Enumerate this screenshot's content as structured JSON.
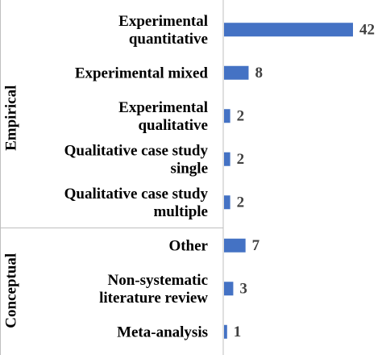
{
  "chart_data": {
    "type": "bar",
    "orientation": "horizontal",
    "categories": [
      "Experimental quantitative",
      "Experimental mixed",
      "Experimental qualitative",
      "Qualitative case study single",
      "Qualitative case study multiple",
      "Other",
      "Non-systematic literature review",
      "Meta-analysis"
    ],
    "category_label_lines": [
      [
        "Experimental",
        "quantitative"
      ],
      [
        "Experimental mixed"
      ],
      [
        "Experimental",
        "qualitative"
      ],
      [
        "Qualitative case study",
        "single"
      ],
      [
        "Qualitative case study",
        "multiple"
      ],
      [
        "Other"
      ],
      [
        "Non-systematic",
        "literature review"
      ],
      [
        "Meta-analysis"
      ]
    ],
    "values": [
      42,
      8,
      2,
      2,
      2,
      7,
      3,
      1
    ],
    "groups": [
      {
        "name": "Empirical",
        "categories": [
          0,
          1,
          2,
          3,
          4
        ]
      },
      {
        "name": "Conceptual",
        "categories": [
          5,
          6,
          7
        ]
      }
    ],
    "xlim": [
      0,
      42
    ],
    "bar_color": "#4472C4",
    "value_label_color": "#404040",
    "axis_color": "#BFBFBF",
    "grid": false,
    "legend": "none",
    "title": "",
    "xlabel": "",
    "ylabel": ""
  }
}
